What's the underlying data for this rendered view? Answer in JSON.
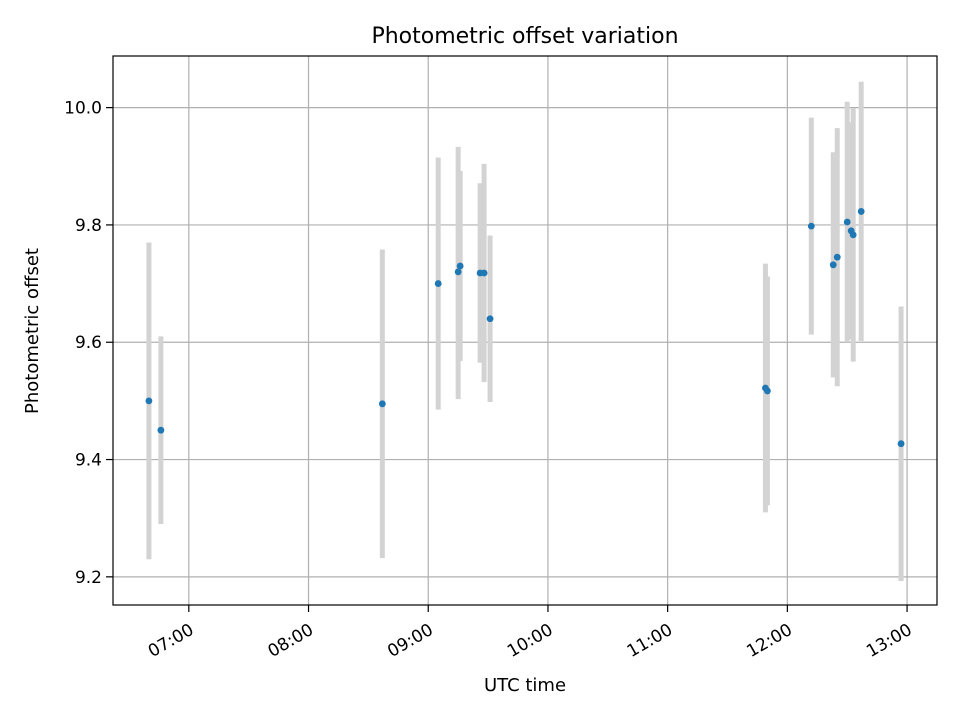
{
  "chart_data": {
    "type": "scatter",
    "title": "Photometric offset variation",
    "xlabel": "UTC time",
    "ylabel": "Photometric offset",
    "xlim": [
      "06:22",
      "13:15"
    ],
    "ylim": [
      9.152,
      10.088
    ],
    "x_ticks": [
      "07:00",
      "08:00",
      "09:00",
      "10:00",
      "11:00",
      "12:00",
      "13:00"
    ],
    "y_ticks": [
      9.2,
      9.4,
      9.6,
      9.8,
      10.0
    ],
    "y_tick_labels": [
      "9.2",
      "9.4",
      "9.6",
      "9.8",
      "10.0"
    ],
    "grid": true,
    "legend": false,
    "marker_color": "#1f77b4",
    "errorbar_color": "#d3d3d3",
    "points": [
      {
        "t": "06:40",
        "y": 9.5,
        "lo": 9.23,
        "hi": 9.77
      },
      {
        "t": "06:46",
        "y": 9.45,
        "lo": 9.29,
        "hi": 9.61
      },
      {
        "t": "08:37",
        "y": 9.495,
        "lo": 9.232,
        "hi": 9.758
      },
      {
        "t": "09:05",
        "y": 9.7,
        "lo": 9.485,
        "hi": 9.915
      },
      {
        "t": "09:15",
        "y": 9.72,
        "lo": 9.503,
        "hi": 9.933
      },
      {
        "t": "09:16",
        "y": 9.73,
        "lo": 9.568,
        "hi": 9.892
      },
      {
        "t": "09:26",
        "y": 9.718,
        "lo": 9.565,
        "hi": 9.871
      },
      {
        "t": "09:28",
        "y": 9.718,
        "lo": 9.532,
        "hi": 9.904
      },
      {
        "t": "09:31",
        "y": 9.64,
        "lo": 9.498,
        "hi": 9.782
      },
      {
        "t": "11:49",
        "y": 9.522,
        "lo": 9.31,
        "hi": 9.734
      },
      {
        "t": "11:50",
        "y": 9.517,
        "lo": 9.322,
        "hi": 9.712
      },
      {
        "t": "12:12",
        "y": 9.798,
        "lo": 9.613,
        "hi": 9.983
      },
      {
        "t": "12:23",
        "y": 9.732,
        "lo": 9.54,
        "hi": 9.924
      },
      {
        "t": "12:25",
        "y": 9.745,
        "lo": 9.525,
        "hi": 9.965
      },
      {
        "t": "12:30",
        "y": 9.805,
        "lo": 9.6,
        "hi": 10.01
      },
      {
        "t": "12:32",
        "y": 9.79,
        "lo": 9.605,
        "hi": 9.975
      },
      {
        "t": "12:33",
        "y": 9.783,
        "lo": 9.567,
        "hi": 9.999
      },
      {
        "t": "12:37",
        "y": 9.823,
        "lo": 9.602,
        "hi": 10.044
      },
      {
        "t": "12:57",
        "y": 9.427,
        "lo": 9.193,
        "hi": 9.661
      }
    ]
  }
}
